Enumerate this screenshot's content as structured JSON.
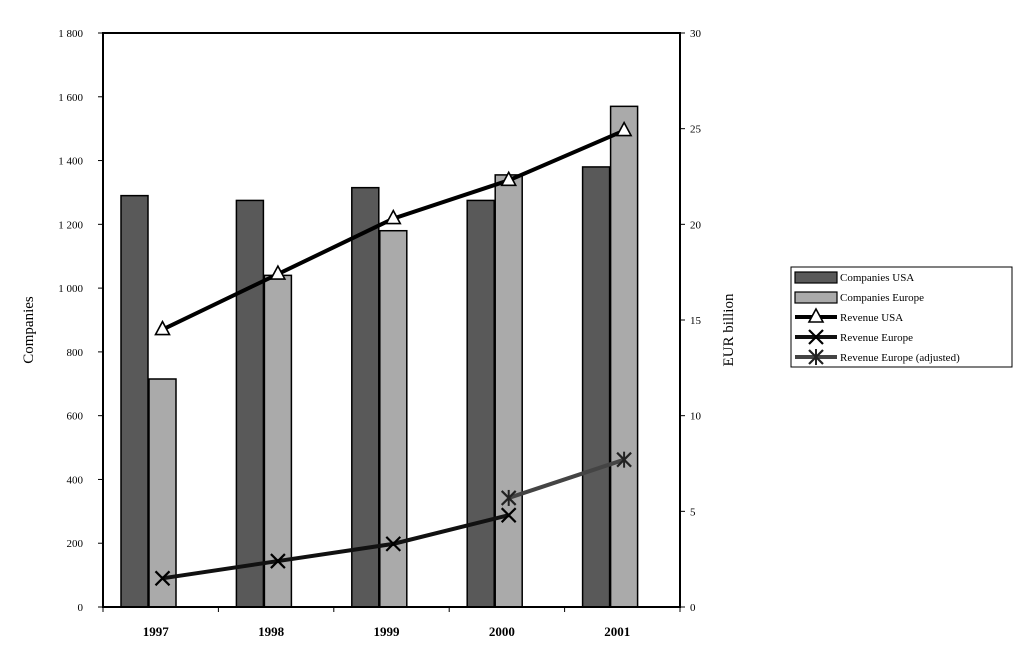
{
  "chart_data": {
    "type": "bar",
    "categories": [
      "1997",
      "1998",
      "1999",
      "2000",
      "2001"
    ],
    "ylabel": "Companies",
    "y2label": "EUR billion",
    "ylim": [
      0,
      1800
    ],
    "y2lim": [
      0,
      30
    ],
    "yticks": [
      "0",
      "200",
      "400",
      "600",
      "800",
      "1 000",
      "1 200",
      "1 400",
      "1 600",
      "1 800"
    ],
    "y2ticks": [
      "0",
      "5",
      "10",
      "15",
      "20",
      "25",
      "30"
    ],
    "grid": false,
    "legend_position": "right",
    "series": [
      {
        "name": "Companies USA",
        "kind": "bar",
        "axis": "left",
        "color": "#595959",
        "values": [
          1290,
          1275,
          1315,
          1275,
          1380
        ]
      },
      {
        "name": "Companies Europe",
        "kind": "bar",
        "axis": "left",
        "color": "#aaaaaa",
        "values": [
          715,
          1040,
          1180,
          1355,
          1570
        ]
      },
      {
        "name": "Revenue USA",
        "kind": "line",
        "marker": "triangle",
        "axis": "right",
        "color": "#000000",
        "values": [
          14.5,
          17.4,
          20.3,
          22.3,
          24.9
        ]
      },
      {
        "name": "Revenue Europe",
        "kind": "line",
        "marker": "x",
        "axis": "right",
        "color": "#111111",
        "values": [
          1.5,
          2.4,
          3.3,
          4.8,
          null
        ]
      },
      {
        "name": "Revenue Europe (adjusted)",
        "kind": "line",
        "marker": "star",
        "axis": "right",
        "color": "#444444",
        "values": [
          null,
          null,
          null,
          5.7,
          7.7
        ]
      }
    ]
  }
}
